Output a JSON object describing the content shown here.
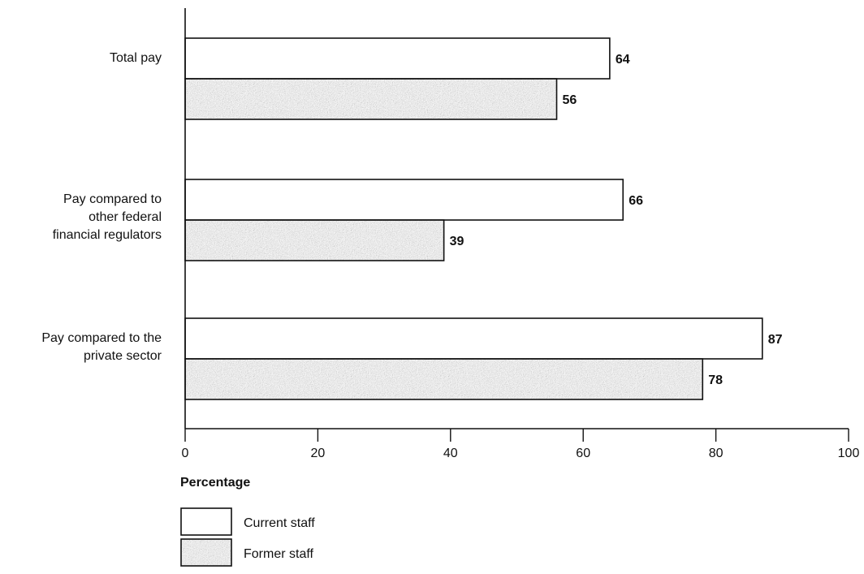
{
  "chart_data": {
    "type": "bar",
    "orientation": "horizontal",
    "categories": [
      [
        "Total pay"
      ],
      [
        "Pay compared to",
        "other federal",
        "financial regulators"
      ],
      [
        "Pay compared to the",
        "private sector"
      ]
    ],
    "series": [
      {
        "name": "Current staff",
        "values": [
          64,
          66,
          87
        ],
        "fill": "#ffffff",
        "pattern": "solid"
      },
      {
        "name": "Former staff",
        "values": [
          56,
          39,
          78
        ],
        "fill": "#8c8c8c",
        "pattern": "stipple"
      }
    ],
    "xlabel": "Percentage",
    "xlim": [
      0,
      100
    ],
    "xticks": [
      0,
      20,
      40,
      60,
      80,
      100
    ],
    "grid": false,
    "legend_position": "bottom-left"
  }
}
